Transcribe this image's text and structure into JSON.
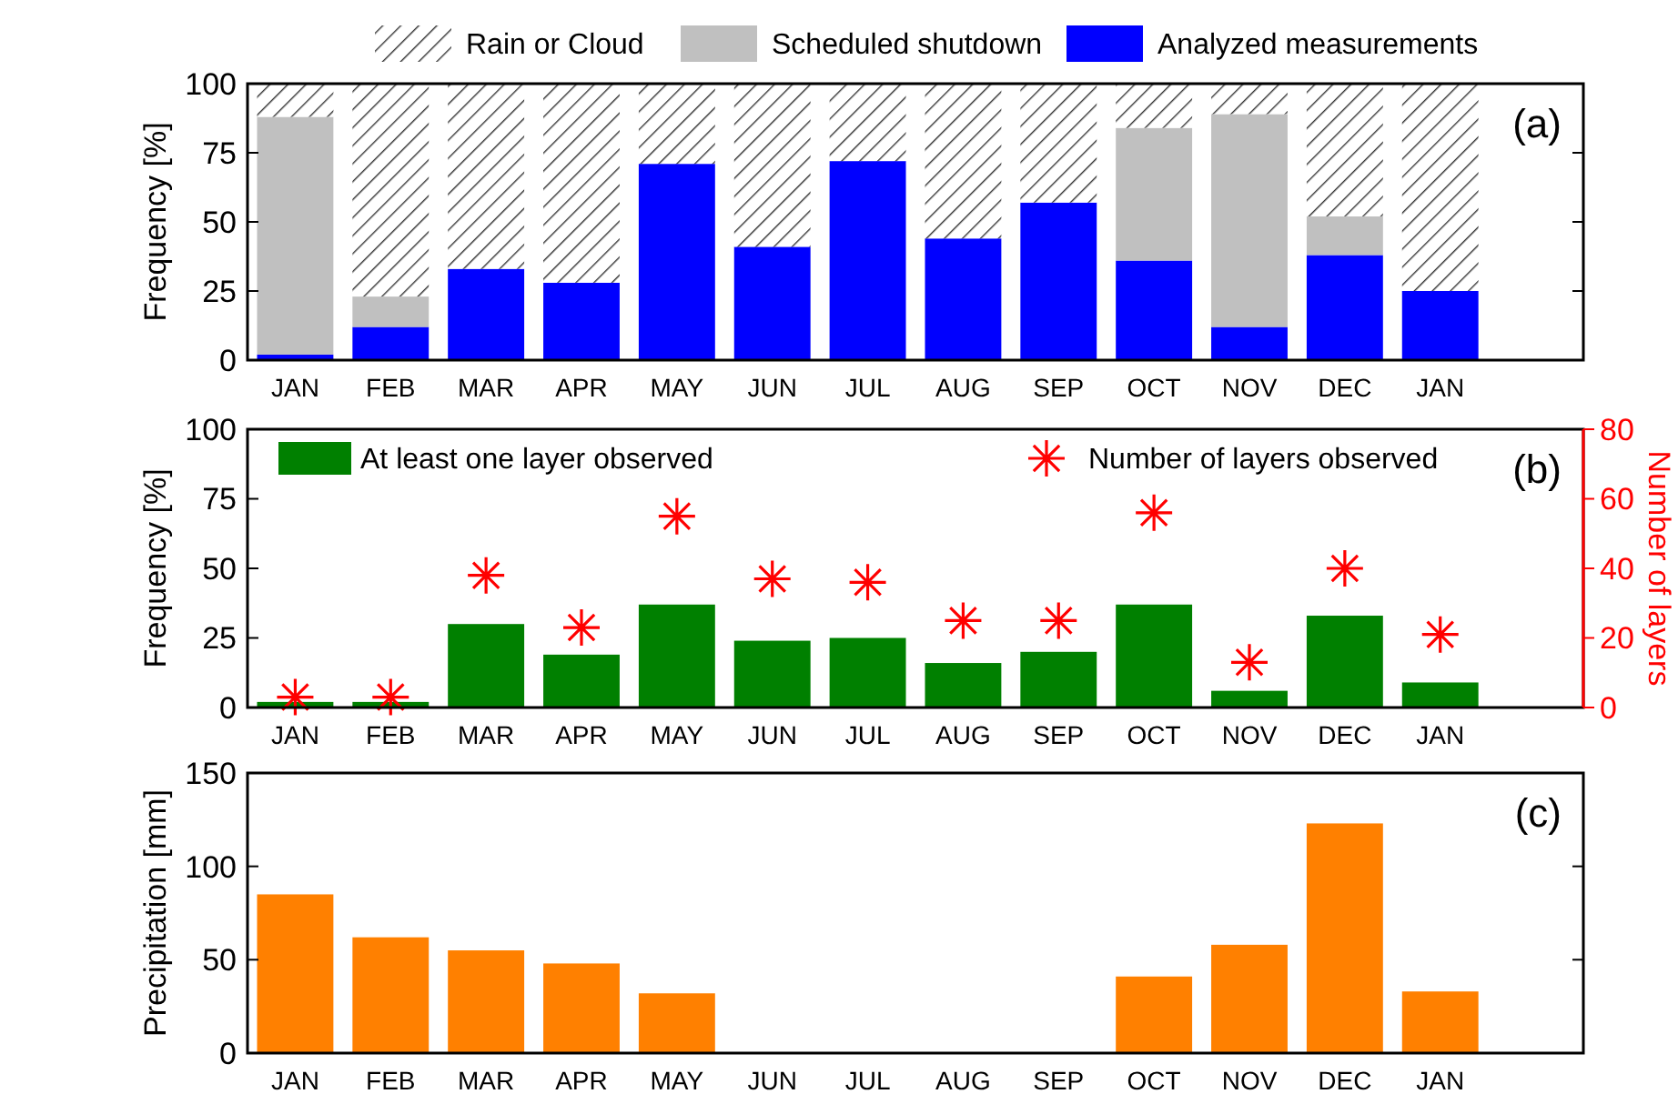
{
  "chart_data": [
    {
      "type": "bar",
      "ylabel": "Frequency [%]",
      "categories": [
        "JAN",
        "FEB",
        "MAR",
        "APR",
        "MAY",
        "JUN",
        "JUL",
        "AUG",
        "SEP",
        "OCT",
        "NOV",
        "DEC",
        "JAN",
        null
      ],
      "stacked": true,
      "ylim": [
        0,
        100
      ],
      "yticks": [
        0,
        25,
        50,
        75,
        100
      ],
      "legend": "top",
      "annotations": [
        "(a)"
      ],
      "series": [
        {
          "name": "Analyzed measurements",
          "color": "#0000ff",
          "values": [
            2,
            12,
            33,
            28,
            71,
            41,
            72,
            44,
            57,
            36,
            12,
            38,
            25,
            null
          ]
        },
        {
          "name": "Scheduled shutdown",
          "color": "#c0c0c0",
          "values": [
            86,
            11,
            0,
            0,
            0,
            0,
            0,
            0,
            0,
            48,
            77,
            14,
            0,
            null
          ]
        },
        {
          "name": "Rain or Cloud",
          "color": "#333333",
          "values": [
            12,
            77,
            67,
            72,
            29,
            59,
            28,
            56,
            43,
            16,
            11,
            48,
            75,
            null
          ]
        }
      ]
    },
    {
      "type": "bar",
      "ylabel": "Frequency [%]",
      "y2label": "Number of layers",
      "categories": [
        "JAN",
        "FEB",
        "MAR",
        "APR",
        "MAY",
        "JUN",
        "JUL",
        "AUG",
        "SEP",
        "OCT",
        "NOV",
        "DEC",
        "JAN",
        null
      ],
      "ylim": [
        0,
        100
      ],
      "yticks": [
        0,
        25,
        50,
        75,
        100
      ],
      "y2lim": [
        0,
        80
      ],
      "y2ticks": [
        0,
        20,
        40,
        60,
        80
      ],
      "legend": "top",
      "annotations": [
        "(b)"
      ],
      "series": [
        {
          "name": "At least one layer observed",
          "color": "#008000",
          "values": [
            2,
            2,
            30,
            19,
            37,
            24,
            25,
            16,
            20,
            37,
            6,
            33,
            9,
            null
          ]
        },
        {
          "name": "Number of layers observed",
          "type": "scatter",
          "marker": "cross",
          "axis": "y2",
          "color": "#ff0000",
          "values": [
            3,
            3,
            38,
            23,
            55,
            37,
            36,
            25,
            25,
            56,
            13,
            40,
            21,
            null
          ]
        }
      ]
    },
    {
      "type": "bar",
      "ylabel": "Precipitation [mm]",
      "categories": [
        "JAN",
        "FEB",
        "MAR",
        "APR",
        "MAY",
        "JUN",
        "JUL",
        "AUG",
        "SEP",
        "OCT",
        "NOV",
        "DEC",
        "JAN",
        null
      ],
      "ylim": [
        0,
        150
      ],
      "yticks": [
        0,
        50,
        100,
        150
      ],
      "annotations": [
        "(c)"
      ],
      "series": [
        {
          "color": "#ff8000",
          "values": [
            85,
            62,
            55,
            48,
            32,
            null,
            null,
            null,
            null,
            41,
            58,
            123,
            33,
            null
          ]
        }
      ]
    }
  ]
}
